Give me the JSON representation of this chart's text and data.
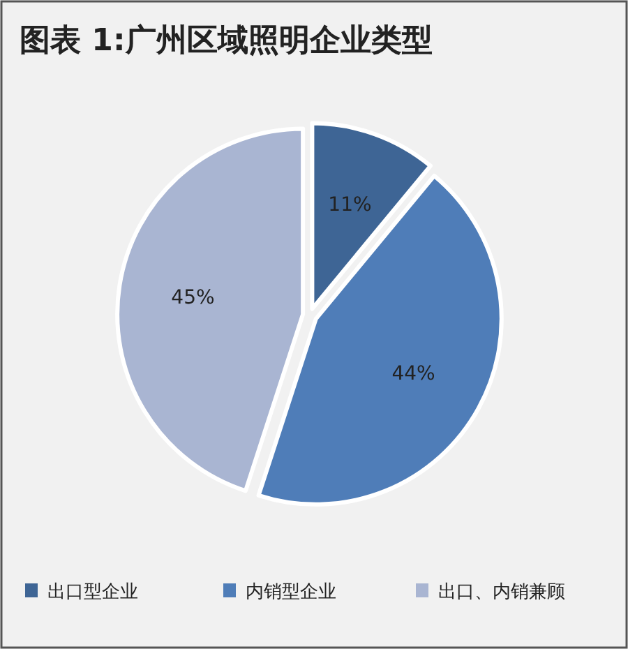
{
  "chart_data": {
    "type": "pie",
    "title": "图表 1:广州区域照明企业类型",
    "categories": [
      "出口型企业",
      "内销型企业",
      "出口、内销兼顾"
    ],
    "values": [
      11,
      44,
      45
    ],
    "colors": [
      "#3e6595",
      "#4f7db8",
      "#a9b5d2"
    ],
    "value_labels": [
      "11%",
      "44%",
      "45%"
    ],
    "legend": "bottom"
  }
}
